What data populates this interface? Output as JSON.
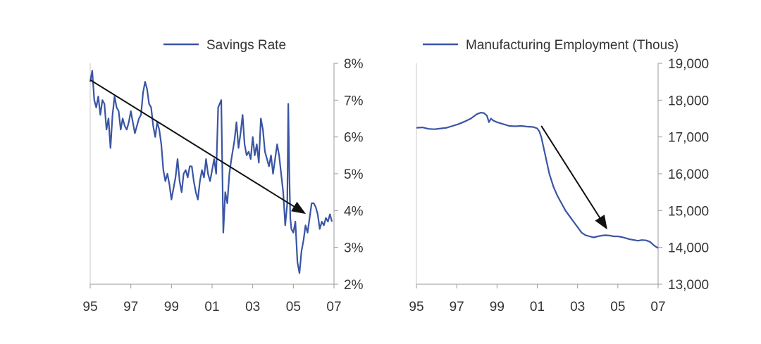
{
  "chart_data": [
    {
      "type": "line",
      "legend": "Savings Rate",
      "color": "#3a55a4",
      "x_ticks": [
        "95",
        "97",
        "99",
        "01",
        "03",
        "05",
        "07"
      ],
      "xlim": [
        1995,
        2007
      ],
      "ylim": [
        2,
        8
      ],
      "y_ticks": [
        "2%",
        "3%",
        "4%",
        "5%",
        "6%",
        "7%",
        "8%"
      ],
      "y_tick_values": [
        2,
        3,
        4,
        5,
        6,
        7,
        8
      ],
      "series": [
        {
          "name": "Savings Rate",
          "x": [
            1995.0,
            1995.1,
            1995.2,
            1995.3,
            1995.4,
            1995.5,
            1995.6,
            1995.7,
            1995.8,
            1995.9,
            1996.0,
            1996.1,
            1996.2,
            1996.3,
            1996.4,
            1996.5,
            1996.6,
            1996.7,
            1996.8,
            1996.9,
            1997.0,
            1997.1,
            1997.2,
            1997.3,
            1997.4,
            1997.5,
            1997.6,
            1997.7,
            1997.8,
            1997.9,
            1998.0,
            1998.1,
            1998.2,
            1998.3,
            1998.4,
            1998.5,
            1998.6,
            1998.7,
            1998.8,
            1998.9,
            1999.0,
            1999.1,
            1999.2,
            1999.3,
            1999.4,
            1999.5,
            1999.6,
            1999.7,
            1999.8,
            1999.9,
            2000.0,
            2000.1,
            2000.2,
            2000.3,
            2000.4,
            2000.5,
            2000.6,
            2000.7,
            2000.8,
            2000.9,
            2001.0,
            2001.1,
            2001.2,
            2001.3,
            2001.45,
            2001.55,
            2001.65,
            2001.75,
            2001.85,
            2001.95,
            2002.1,
            2002.2,
            2002.3,
            2002.4,
            2002.5,
            2002.6,
            2002.7,
            2002.8,
            2002.9,
            2003.0,
            2003.1,
            2003.2,
            2003.3,
            2003.4,
            2003.5,
            2003.6,
            2003.7,
            2003.8,
            2003.9,
            2004.0,
            2004.1,
            2004.2,
            2004.3,
            2004.4,
            2004.5,
            2004.6,
            2004.7,
            2004.75,
            2004.8,
            2004.85,
            2004.9,
            2005.0,
            2005.1,
            2005.2,
            2005.3,
            2005.4,
            2005.5,
            2005.6,
            2005.7,
            2005.8,
            2005.9,
            2006.0,
            2006.1,
            2006.2,
            2006.3,
            2006.4,
            2006.5,
            2006.6,
            2006.7,
            2006.8,
            2006.9
          ],
          "values": [
            7.5,
            7.8,
            7.0,
            6.8,
            7.1,
            6.6,
            7.0,
            6.9,
            6.2,
            6.5,
            5.7,
            6.6,
            7.1,
            6.8,
            6.7,
            6.2,
            6.5,
            6.3,
            6.2,
            6.4,
            6.7,
            6.4,
            6.1,
            6.3,
            6.5,
            6.6,
            7.2,
            7.5,
            7.3,
            6.9,
            6.8,
            6.3,
            6.0,
            6.4,
            6.2,
            5.8,
            5.1,
            4.8,
            5.0,
            4.7,
            4.3,
            4.6,
            4.9,
            5.4,
            4.8,
            4.5,
            5.0,
            5.1,
            4.9,
            5.2,
            5.2,
            4.8,
            4.5,
            4.3,
            4.8,
            5.1,
            4.9,
            5.4,
            5.0,
            4.8,
            5.1,
            5.4,
            5.0,
            6.8,
            7.0,
            3.4,
            4.5,
            4.2,
            5.0,
            5.4,
            5.9,
            6.4,
            5.7,
            6.1,
            6.6,
            5.8,
            5.5,
            5.6,
            5.4,
            6.0,
            5.5,
            5.8,
            5.3,
            6.5,
            6.2,
            5.6,
            5.4,
            5.2,
            5.5,
            5.0,
            5.4,
            5.8,
            5.5,
            5.0,
            4.5,
            3.6,
            4.2,
            6.9,
            5.0,
            3.8,
            3.5,
            3.4,
            3.7,
            2.6,
            2.3,
            2.9,
            3.2,
            3.6,
            3.4,
            3.8,
            4.2,
            4.2,
            4.1,
            3.9,
            3.5,
            3.7,
            3.6,
            3.8,
            3.7,
            3.9,
            3.7
          ]
        }
      ],
      "arrow": {
        "from": [
          1995.0,
          7.55
        ],
        "to": [
          2005.5,
          3.95
        ]
      }
    },
    {
      "type": "line",
      "legend": "Manufacturing Employment (Thous)",
      "color": "#3a55a4",
      "x_ticks": [
        "95",
        "97",
        "99",
        "01",
        "03",
        "05",
        "07"
      ],
      "xlim": [
        1995,
        2007
      ],
      "ylim": [
        13000,
        19000
      ],
      "y_ticks": [
        "13,000",
        "14,000",
        "15,000",
        "16,000",
        "17,000",
        "18,000",
        "19,000"
      ],
      "y_tick_values": [
        13000,
        14000,
        15000,
        16000,
        17000,
        18000,
        19000
      ],
      "series": [
        {
          "name": "Manufacturing Employment (Thous)",
          "x": [
            1995.0,
            1995.3,
            1995.6,
            1995.9,
            1996.2,
            1996.5,
            1996.8,
            1997.1,
            1997.4,
            1997.7,
            1998.0,
            1998.2,
            1998.35,
            1998.5,
            1998.6,
            1998.7,
            1998.8,
            1999.0,
            1999.3,
            1999.6,
            1999.9,
            2000.2,
            2000.5,
            2000.8,
            2001.0,
            2001.1,
            2001.2,
            2001.4,
            2001.6,
            2001.8,
            2002.0,
            2002.2,
            2002.4,
            2002.6,
            2002.8,
            2003.0,
            2003.2,
            2003.4,
            2003.6,
            2003.8,
            2004.0,
            2004.2,
            2004.4,
            2004.6,
            2004.8,
            2005.0,
            2005.2,
            2005.4,
            2005.6,
            2005.8,
            2006.0,
            2006.2,
            2006.4,
            2006.6,
            2006.8,
            2007.0
          ],
          "values": [
            17250,
            17260,
            17220,
            17210,
            17230,
            17250,
            17300,
            17350,
            17420,
            17500,
            17620,
            17660,
            17650,
            17580,
            17400,
            17500,
            17450,
            17400,
            17350,
            17300,
            17290,
            17300,
            17280,
            17270,
            17230,
            17150,
            17000,
            16500,
            16000,
            15650,
            15400,
            15200,
            15000,
            14850,
            14700,
            14550,
            14400,
            14330,
            14300,
            14270,
            14300,
            14320,
            14330,
            14320,
            14300,
            14300,
            14280,
            14250,
            14220,
            14200,
            14180,
            14200,
            14190,
            14150,
            14050,
            13980
          ]
        }
      ],
      "arrow": {
        "from": [
          2001.2,
          17300
        ],
        "to": [
          2004.4,
          14550
        ]
      }
    }
  ]
}
